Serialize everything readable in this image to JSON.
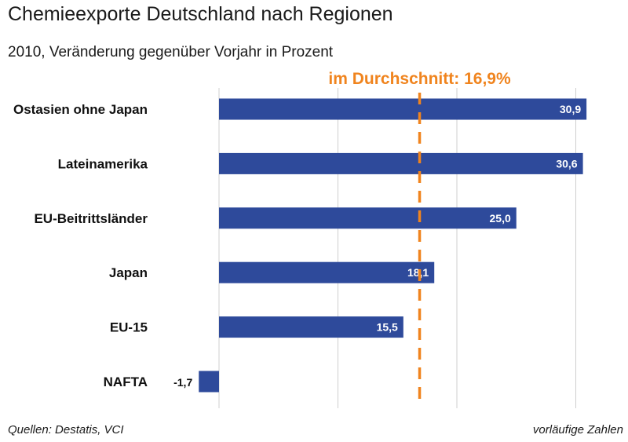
{
  "header": {
    "title": "Chemieexporte Deutschland nach Regionen",
    "subtitle": "2010, Veränderung gegenüber Vorjahr in Prozent"
  },
  "footer": {
    "source": "Quellen: Destatis, VCI",
    "note": "vorläufige Zahlen"
  },
  "colors": {
    "bar": "#2e4a9b",
    "average": "#f0841e",
    "grid": "#cfcfcf"
  },
  "chart_data": {
    "type": "bar",
    "orientation": "horizontal",
    "title": "Chemieexporte Deutschland nach Regionen",
    "subtitle": "2010, Veränderung gegenüber Vorjahr in Prozent",
    "categories": [
      "Ostasien ohne Japan",
      "Lateinamerika",
      "EU-Beitrittsländer",
      "Japan",
      "EU-15",
      "NAFTA"
    ],
    "values": [
      30.9,
      30.6,
      25.0,
      18.1,
      15.5,
      -1.7
    ],
    "value_labels": [
      "30,9",
      "30,6",
      "25,0",
      "18,1",
      "15,5",
      "-1,7"
    ],
    "xlim": [
      -2,
      35
    ],
    "gridlines": [
      0,
      10,
      20,
      30
    ],
    "average": {
      "value": 16.9,
      "label": "im Durchschnitt: 16,9%"
    }
  }
}
